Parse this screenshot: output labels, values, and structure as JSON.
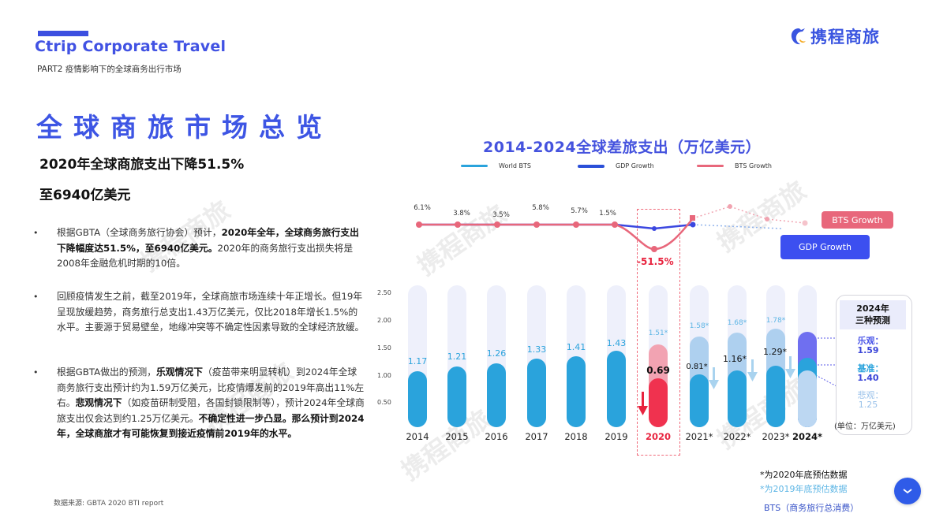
{
  "header": {
    "brand_title": "Ctrip Corporate Travel",
    "subtitle": "PART2  疫情影响下的全球商务出行市场",
    "logo_text": "携程商旅",
    "logo_icon": "dolphin-logo-icon"
  },
  "left": {
    "title": "全球商旅市场总览",
    "headline_line1": "2020年全球商旅支出下降51.5%",
    "headline_line2": "至6940亿美元",
    "bullets": [
      {
        "parts": [
          {
            "text": "根据GBTA（全球商务旅行协会）预计，",
            "bold": false
          },
          {
            "text": "2020年全年，全球商务旅行支出下降幅度达51.5%，至6940亿美元。",
            "bold": true
          },
          {
            "text": "2020年的商务旅行支出损失将是2008年金融危机时期的10倍。",
            "bold": false
          }
        ]
      },
      {
        "parts": [
          {
            "text": "回顾疫情发生之前，截至2019年，全球商旅市场连续十年正增长。但19年呈现放缓趋势，商务旅行总支出1.43万亿美元，仅比2018年增长1.5%的水平。主要源于贸易壁垒，地缘冲突等不确定性因素导致的全球经济放缓。",
            "bold": false
          }
        ]
      },
      {
        "parts": [
          {
            "text": "根据GBTA做出的预测，",
            "bold": false
          },
          {
            "text": "乐观情况下",
            "bold": true
          },
          {
            "text": "（疫苗带来明显转机）到2024年全球商务旅行支出预计约为1.59万亿美元，比疫情爆发前的2019年高出11%左右。",
            "bold": false
          },
          {
            "text": "悲观情况下",
            "bold": true
          },
          {
            "text": "（如疫苗研制受阻，各国封锁限制等），预计2024年全球商旅支出仅会达到约1.25万亿美元。",
            "bold": false
          },
          {
            "text": "不确定性进一步凸显。那么预计到2024年，全球商旅才有可能恢复到接近疫情前2019年的水平。",
            "bold": true
          }
        ]
      }
    ],
    "bullet_symbol": "•",
    "source": "数据来源:   GBTA 2020 BTI report"
  },
  "chart_data": {
    "type": "bar",
    "title": "2014-2024全球差旅支出（万亿美元）",
    "legend": [
      {
        "name": "World BTS",
        "color": "#2aa3dc"
      },
      {
        "name": "GDP Growth",
        "color": "#2b4fd8"
      },
      {
        "name": "BTS Growth",
        "color": "#e8677b"
      }
    ],
    "ylim": [
      0,
      2.5
    ],
    "yticks": [
      "0.50",
      "1.00",
      "1.50",
      "2.00",
      "2.50"
    ],
    "categories": [
      "2014",
      "2015",
      "2016",
      "2017",
      "2018",
      "2019",
      "2020",
      "2021*",
      "2022*",
      "2023*",
      "2024*"
    ],
    "series": [
      {
        "name": "World BTS (actual/forecast as of 2020)",
        "values": [
          1.17,
          1.21,
          1.26,
          1.33,
          1.41,
          1.43,
          0.69,
          0.81,
          1.16,
          1.29,
          null
        ]
      },
      {
        "name": "World BTS (forecast as of end 2019)",
        "values": [
          null,
          null,
          null,
          null,
          null,
          null,
          1.51,
          1.58,
          1.68,
          1.78,
          null
        ]
      },
      {
        "name": "BTS Growth",
        "values": [
          6.1,
          3.8,
          3.5,
          5.8,
          5.7,
          1.5,
          -51.5,
          null,
          null,
          null,
          null
        ],
        "unit": "%"
      }
    ],
    "bts_growth_labels": [
      "6.1%",
      "3.8%",
      "3.5%",
      "5.8%",
      "5.7%",
      "1.5%",
      "-51.5%"
    ],
    "bar_labels": {
      "actual": [
        "1.17",
        "1.21",
        "1.26",
        "1.33",
        "1.41",
        "1.43",
        "0.69",
        "0.81*",
        "1.16*",
        "1.29*"
      ],
      "pre_covid": [
        "1.51*",
        "1.58*",
        "1.68*",
        "1.78*"
      ]
    },
    "year_labels": [
      "2014",
      "2015",
      "2016",
      "2017",
      "2018",
      "2019",
      "2020",
      "2021*",
      "2022*",
      "2023*",
      "2024*"
    ],
    "tags": {
      "bts_growth": "BTS Growth",
      "gdp_growth": "GDP Growth"
    },
    "scenarios_2024": {
      "header_line1": "2024年",
      "header_line2": "三种预测",
      "optimistic_label": "乐观：",
      "optimistic_value": "1.59",
      "baseline_label": "基准：",
      "baseline_value": "1.40",
      "pessimistic_label": "悲观：",
      "pessimistic_value": "1.25",
      "unit": "(单位：万亿美元)"
    },
    "colors": {
      "actual": "#2aa3dc",
      "pre_covid": "#aed0ef",
      "track": "#eef0fb",
      "covid_2020": "#f0324f",
      "covid_2020_light": "#f2a3b2",
      "optimistic": "#6f6ff0",
      "gdp": "#3b47e0",
      "bts": "#e8677b"
    }
  },
  "notes": {
    "note1": "*为2020年底预估数据",
    "note2": "*为2019年底预估数据",
    "note3": "BTS（商务旅行总消费）"
  },
  "watermark": "携程商旅"
}
